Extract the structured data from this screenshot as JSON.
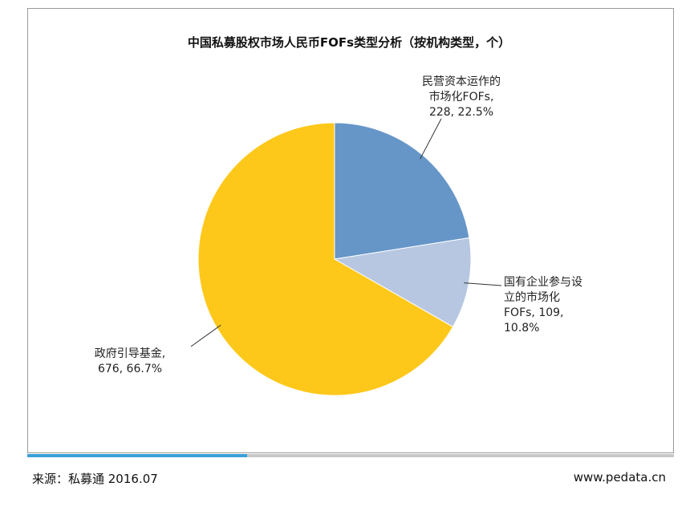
{
  "chart_data": {
    "type": "pie",
    "title": "中国私募股权市场人民币FOFs类型分析（按机构类型，个）",
    "slices": [
      {
        "label_lines": [
          "民营资本运作的",
          "市场化FOFs,",
          "228, 22.5%"
        ],
        "value": 228,
        "percent": 22.5,
        "color": "#6696c8"
      },
      {
        "label_lines": [
          "国有企业参与设",
          "立的市场化",
          "FOFs, 109,",
          "10.8%"
        ],
        "value": 109,
        "percent": 10.8,
        "color": "#b7c7e1"
      },
      {
        "label_lines": [
          "政府引导基金,",
          "676, 66.7%"
        ],
        "value": 676,
        "percent": 66.7,
        "color": "#fec81b"
      }
    ]
  },
  "footer": {
    "source": "来源：私募通 2016.07",
    "website": "www.pedata.cn",
    "progress_fraction": 0.34
  },
  "colors": {
    "progress": "#3aa0d8",
    "track": "#c8c8c8"
  }
}
